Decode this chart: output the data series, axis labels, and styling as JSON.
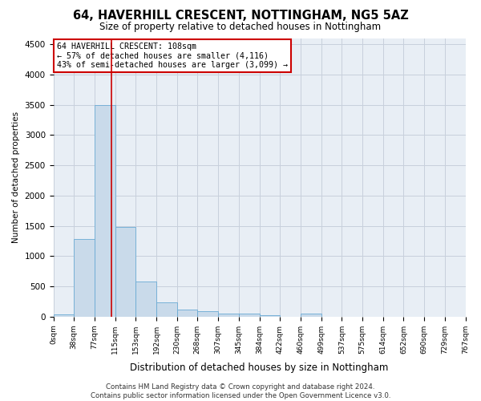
{
  "title": "64, HAVERHILL CRESCENT, NOTTINGHAM, NG5 5AZ",
  "subtitle": "Size of property relative to detached houses in Nottingham",
  "xlabel": "Distribution of detached houses by size in Nottingham",
  "ylabel": "Number of detached properties",
  "bar_color": "#c9daea",
  "bar_edge_color": "#6aaad4",
  "grid_color": "#c8d0dc",
  "bg_color": "#e8eef5",
  "vline_x": 108,
  "vline_color": "#cc0000",
  "bin_edges": [
    0,
    38,
    77,
    115,
    153,
    192,
    230,
    268,
    307,
    345,
    384,
    422,
    460,
    499,
    537,
    575,
    614,
    652,
    690,
    729,
    767
  ],
  "bar_heights": [
    40,
    1280,
    3500,
    1480,
    575,
    240,
    115,
    90,
    55,
    50,
    30,
    0,
    50,
    0,
    0,
    0,
    0,
    0,
    0,
    0
  ],
  "annotation_text": "64 HAVERHILL CRESCENT: 108sqm\n← 57% of detached houses are smaller (4,116)\n43% of semi-detached houses are larger (3,099) →",
  "annotation_box_color": "white",
  "annotation_box_edge_color": "#cc0000",
  "footer_text": "Contains HM Land Registry data © Crown copyright and database right 2024.\nContains public sector information licensed under the Open Government Licence v3.0.",
  "ylim": [
    0,
    4600
  ],
  "yticks": [
    0,
    500,
    1000,
    1500,
    2000,
    2500,
    3000,
    3500,
    4000,
    4500
  ],
  "title_fontsize": 10.5,
  "subtitle_fontsize": 8.5
}
